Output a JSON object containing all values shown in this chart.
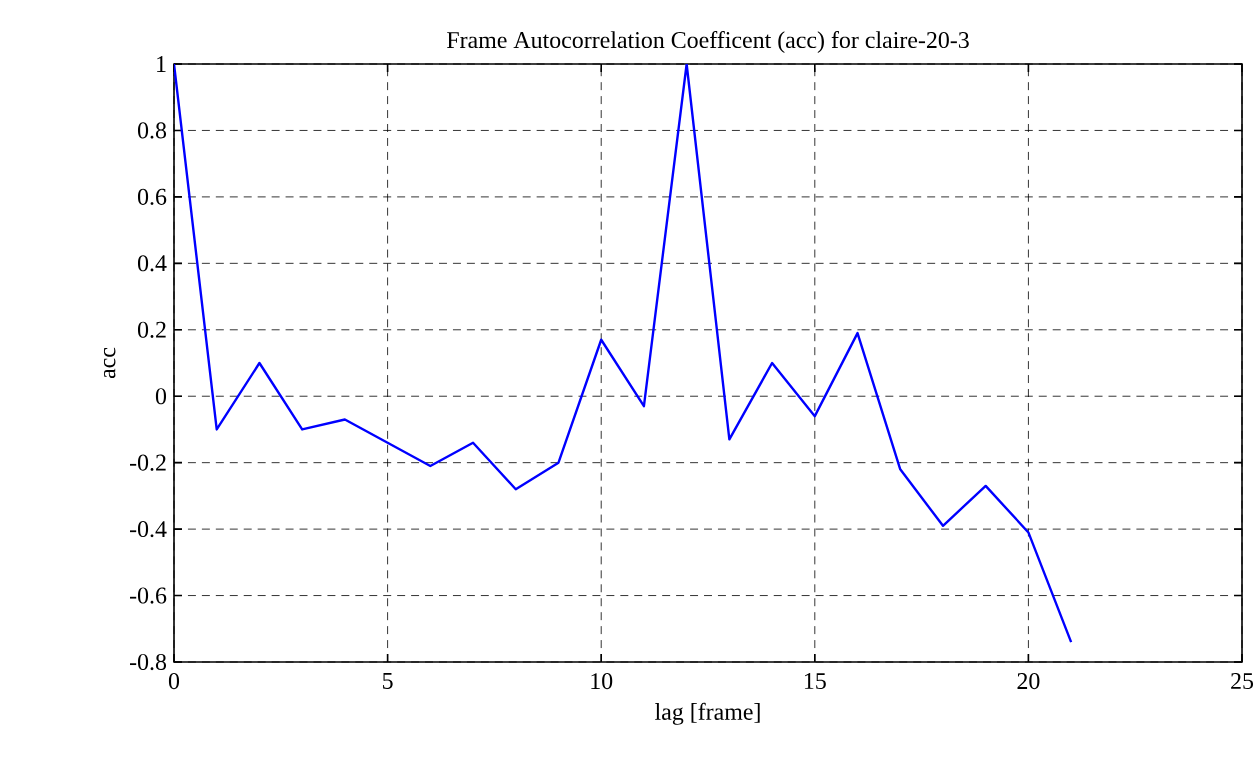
{
  "chart_data": {
    "type": "line",
    "title": "Frame Autocorrelation Coefficent (acc) for claire-20-3",
    "xlabel": "lag [frame]",
    "ylabel": "acc",
    "x": [
      0,
      1,
      2,
      3,
      4,
      5,
      6,
      7,
      8,
      9,
      10,
      11,
      12,
      13,
      14,
      15,
      16,
      17,
      18,
      19,
      20,
      21
    ],
    "series": [
      {
        "color": "#0000ff",
        "values": [
          1.0,
          -0.1,
          0.1,
          -0.1,
          -0.07,
          -0.14,
          -0.21,
          -0.14,
          -0.28,
          -0.2,
          0.17,
          -0.03,
          1.0,
          -0.13,
          0.1,
          -0.06,
          0.19,
          -0.22,
          -0.39,
          -0.27,
          -0.41,
          -0.74
        ]
      }
    ],
    "xlim": [
      0,
      25
    ],
    "ylim": [
      -0.8,
      1
    ],
    "xticks": [
      0,
      5,
      10,
      15,
      20,
      25
    ],
    "yticks": [
      {
        "value": -0.8,
        "label": "-0.8"
      },
      {
        "value": -0.6,
        "label": "-0.6"
      },
      {
        "value": -0.4,
        "label": "-0.4"
      },
      {
        "value": -0.2,
        "label": "-0.2"
      },
      0,
      {
        "value": 0.2,
        "label": "0.2"
      },
      {
        "value": 0.4,
        "label": "0.4"
      },
      {
        "value": 0.6,
        "label": "0.6"
      },
      {
        "value": 0.8,
        "label": "0.8"
      },
      1
    ],
    "grid": true,
    "marker": "none",
    "line_style": "solid"
  }
}
